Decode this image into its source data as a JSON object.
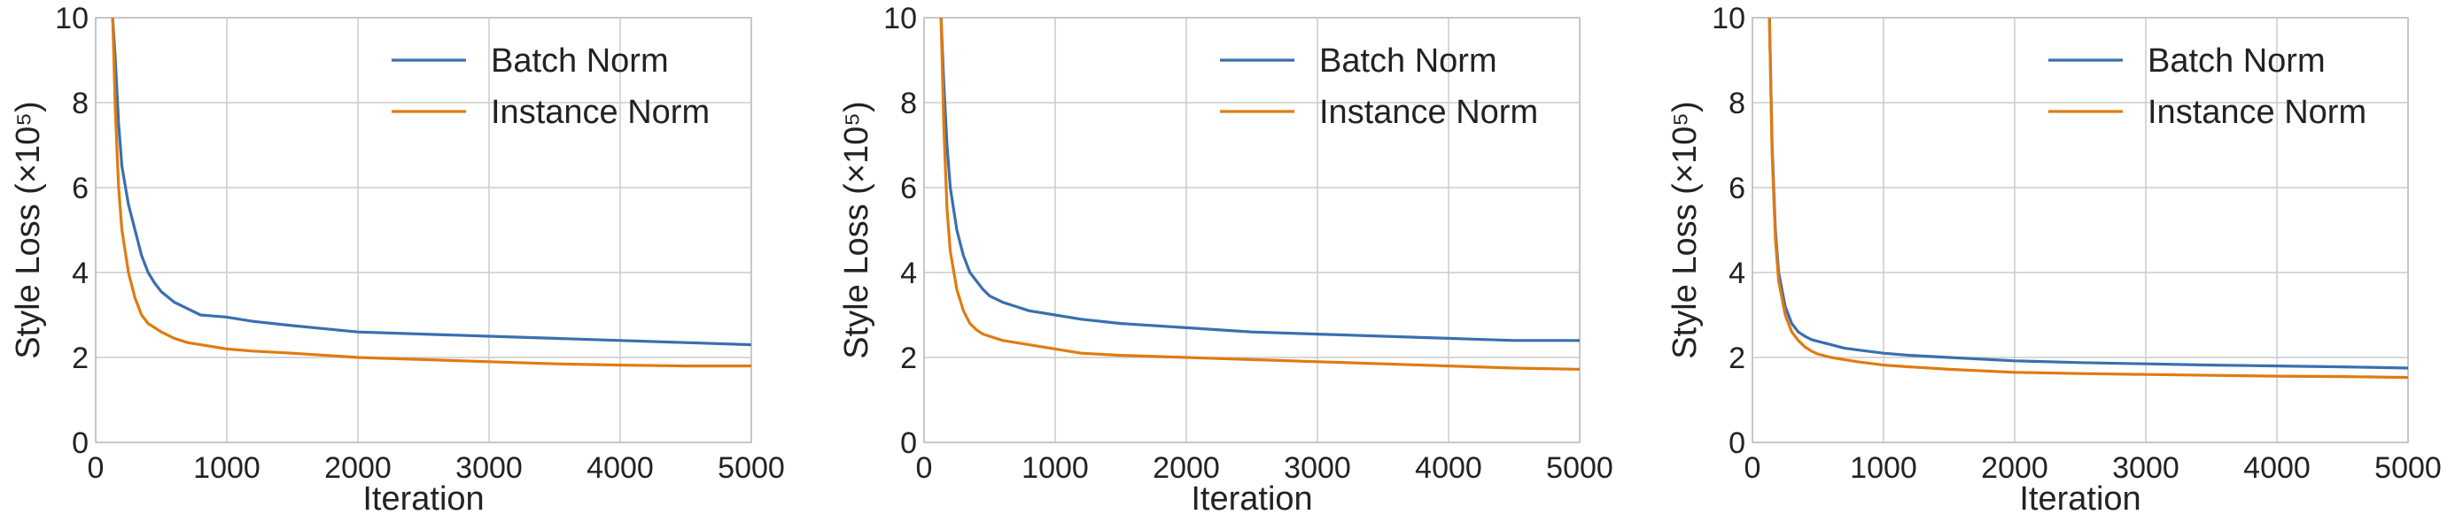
{
  "chart_data": [
    {
      "type": "line",
      "xlabel": "Iteration",
      "ylabel": "Style Loss (×10⁵)",
      "xlim": [
        0,
        5000
      ],
      "ylim": [
        0,
        10
      ],
      "xticks": [
        "0",
        "1000",
        "2000",
        "3000",
        "4000",
        "5000"
      ],
      "yticks": [
        "0",
        "2",
        "4",
        "6",
        "8",
        "10"
      ],
      "grid": true,
      "legend": "top-right",
      "x": [
        130,
        150,
        175,
        200,
        250,
        300,
        350,
        400,
        450,
        500,
        600,
        700,
        800,
        1000,
        1200,
        1500,
        2000,
        2500,
        3000,
        3500,
        4000,
        4500,
        5000
      ],
      "series": [
        {
          "name": "Batch Norm",
          "color": "#3a6fb0",
          "values": [
            10,
            9.0,
            7.5,
            6.5,
            5.6,
            5.0,
            4.4,
            4.0,
            3.75,
            3.55,
            3.3,
            3.15,
            3.0,
            2.95,
            2.85,
            2.75,
            2.6,
            2.55,
            2.5,
            2.45,
            2.4,
            2.35,
            2.3
          ]
        },
        {
          "name": "Instance Norm",
          "color": "#e07b10",
          "values": [
            10,
            7.8,
            6.0,
            5.0,
            4.0,
            3.4,
            3.0,
            2.8,
            2.7,
            2.6,
            2.45,
            2.35,
            2.3,
            2.2,
            2.15,
            2.1,
            2.0,
            1.95,
            1.9,
            1.85,
            1.82,
            1.8,
            1.8
          ]
        }
      ]
    },
    {
      "type": "line",
      "xlabel": "Iteration",
      "ylabel": "Style Loss (×10⁵)",
      "xlim": [
        0,
        5000
      ],
      "ylim": [
        0,
        10
      ],
      "xticks": [
        "0",
        "1000",
        "2000",
        "3000",
        "4000",
        "5000"
      ],
      "yticks": [
        "0",
        "2",
        "4",
        "6",
        "8",
        "10"
      ],
      "grid": true,
      "legend": "top-right",
      "x": [
        130,
        150,
        175,
        200,
        250,
        300,
        350,
        400,
        450,
        500,
        600,
        700,
        800,
        1000,
        1200,
        1500,
        2000,
        2500,
        3000,
        3500,
        4000,
        4500,
        5000
      ],
      "series": [
        {
          "name": "Batch Norm",
          "color": "#3a6fb0",
          "values": [
            10,
            8.5,
            7.0,
            6.0,
            5.0,
            4.4,
            4.0,
            3.8,
            3.6,
            3.45,
            3.3,
            3.2,
            3.1,
            3.0,
            2.9,
            2.8,
            2.7,
            2.6,
            2.55,
            2.5,
            2.45,
            2.4,
            2.4
          ]
        },
        {
          "name": "Instance Norm",
          "color": "#e07b10",
          "values": [
            10,
            7.5,
            5.5,
            4.5,
            3.6,
            3.1,
            2.8,
            2.65,
            2.55,
            2.5,
            2.4,
            2.35,
            2.3,
            2.2,
            2.1,
            2.05,
            2.0,
            1.95,
            1.9,
            1.85,
            1.8,
            1.75,
            1.72
          ]
        }
      ]
    },
    {
      "type": "line",
      "xlabel": "Iteration",
      "ylabel": "Style Loss (×10⁵)",
      "xlim": [
        0,
        5000
      ],
      "ylim": [
        0,
        10
      ],
      "xticks": [
        "0",
        "1000",
        "2000",
        "3000",
        "4000",
        "5000"
      ],
      "yticks": [
        "0",
        "2",
        "4",
        "6",
        "8",
        "10"
      ],
      "grid": true,
      "legend": "top-right",
      "x": [
        130,
        150,
        175,
        200,
        250,
        300,
        350,
        400,
        450,
        500,
        600,
        700,
        800,
        1000,
        1200,
        1500,
        2000,
        2500,
        3000,
        3500,
        4000,
        4500,
        5000
      ],
      "series": [
        {
          "name": "Batch Norm",
          "color": "#3a6fb0",
          "values": [
            10,
            7.0,
            5.0,
            4.0,
            3.2,
            2.8,
            2.6,
            2.5,
            2.42,
            2.38,
            2.3,
            2.22,
            2.18,
            2.1,
            2.05,
            2.0,
            1.92,
            1.88,
            1.85,
            1.82,
            1.8,
            1.78,
            1.75
          ]
        },
        {
          "name": "Instance Norm",
          "color": "#e07b10",
          "values": [
            10,
            6.8,
            4.8,
            3.8,
            3.0,
            2.6,
            2.4,
            2.25,
            2.15,
            2.08,
            2.0,
            1.95,
            1.9,
            1.82,
            1.78,
            1.72,
            1.65,
            1.62,
            1.6,
            1.58,
            1.56,
            1.55,
            1.53
          ]
        }
      ]
    }
  ]
}
